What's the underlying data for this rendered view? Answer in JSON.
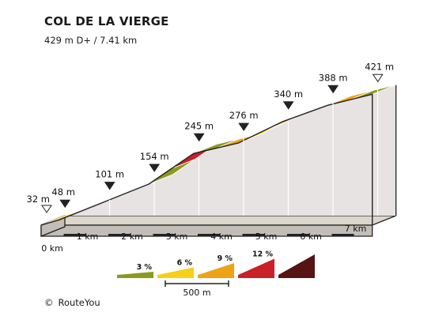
{
  "page": {
    "title": "COL DE LA VIERGE",
    "subtitle": "429 m D+ / 7.41 km",
    "credit_symbol": "©",
    "credit": "RouteYou"
  },
  "chart_data": {
    "type": "area",
    "title": "COL DE LA VIERGE",
    "subtitle": "429 m D+ / 7.41 km",
    "x_unit": "km",
    "y_unit": "m",
    "xlim": [
      0,
      7.41
    ],
    "x_ticks": [
      0,
      1,
      2,
      3,
      4,
      5,
      6,
      7
    ],
    "x_tick_labels": [
      "0 km",
      "1 km",
      "2 km",
      "3 km",
      "4 km",
      "5 km",
      "6 km",
      "7 km"
    ],
    "profile": [
      {
        "km": 0.0,
        "alt": 32,
        "label": "32 m",
        "marker": "start"
      },
      {
        "km": 0.41,
        "alt": 48,
        "label": "48 m",
        "marker": "waypoint"
      },
      {
        "km": 1.41,
        "alt": 101,
        "label": "101 m",
        "marker": "waypoint"
      },
      {
        "km": 2.41,
        "alt": 154,
        "label": "154 m",
        "marker": "waypoint"
      },
      {
        "km": 3.41,
        "alt": 245,
        "label": "245 m",
        "marker": "waypoint"
      },
      {
        "km": 4.41,
        "alt": 276,
        "label": "276 m",
        "marker": "waypoint"
      },
      {
        "km": 5.41,
        "alt": 340,
        "label": "340 m",
        "marker": "waypoint"
      },
      {
        "km": 6.41,
        "alt": 388,
        "label": "388 m",
        "marker": "waypoint"
      },
      {
        "km": 7.41,
        "alt": 421,
        "label": "421 m",
        "marker": "finish"
      }
    ],
    "segments": [
      {
        "from_km": 0.0,
        "to_km": 0.41,
        "gradient_class": "6"
      },
      {
        "from_km": 0.41,
        "to_km": 0.91,
        "gradient_class": "6"
      },
      {
        "from_km": 0.91,
        "to_km": 1.41,
        "gradient_class": "9"
      },
      {
        "from_km": 1.41,
        "to_km": 1.91,
        "gradient_class": "6"
      },
      {
        "from_km": 1.91,
        "to_km": 2.41,
        "gradient_class": "6"
      },
      {
        "from_km": 2.41,
        "to_km": 2.91,
        "gradient_class": "3"
      },
      {
        "from_km": 2.91,
        "to_km": 3.41,
        "gradient_class": "12"
      },
      {
        "from_km": 3.41,
        "to_km": 3.91,
        "gradient_class": "3"
      },
      {
        "from_km": 3.91,
        "to_km": 4.41,
        "gradient_class": "9"
      },
      {
        "from_km": 4.41,
        "to_km": 4.91,
        "gradient_class": "6"
      },
      {
        "from_km": 4.91,
        "to_km": 5.41,
        "gradient_class": "9"
      },
      {
        "from_km": 5.41,
        "to_km": 5.91,
        "gradient_class": "6"
      },
      {
        "from_km": 5.91,
        "to_km": 6.41,
        "gradient_class": "9"
      },
      {
        "from_km": 6.41,
        "to_km": 6.91,
        "gradient_class": "9"
      },
      {
        "from_km": 6.91,
        "to_km": 7.41,
        "gradient_class": "3"
      }
    ],
    "legend": {
      "items": [
        {
          "label": "3 %",
          "class": "3",
          "color": "#8b9a1e"
        },
        {
          "label": "6 %",
          "class": "6",
          "color": "#f7cf14"
        },
        {
          "label": "9 %",
          "class": "9",
          "color": "#eea216"
        },
        {
          "label": "12 %",
          "class": "12",
          "color": "#c9202a"
        },
        {
          "label": "",
          "class": "15",
          "color": "#561414"
        }
      ],
      "scale_label": "500 m"
    },
    "colors": {
      "3": "#8b9a1e",
      "6": "#f7cf14",
      "9": "#eea216",
      "12": "#c9202a",
      "15": "#561414",
      "wall": "#e7e3e2",
      "base_top": "#ddd6cb",
      "base_front": "#c2bdb7",
      "outline": "#222222",
      "start_marker": "#ffffff",
      "waypoint_marker": "#222222"
    }
  }
}
